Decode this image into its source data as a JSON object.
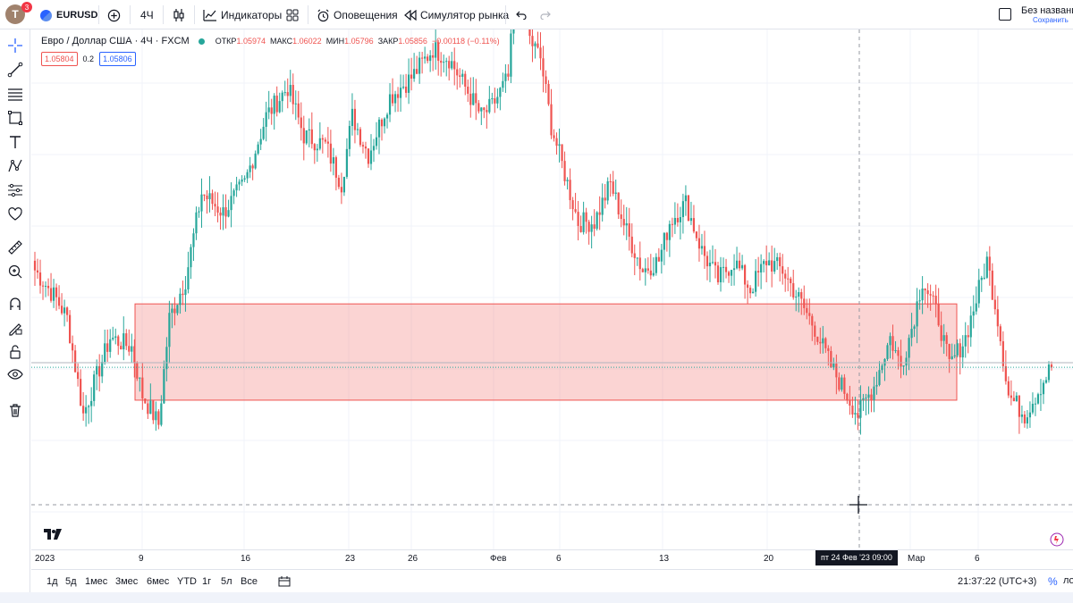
{
  "header": {
    "avatar_letter": "T",
    "avatar_badge": "3",
    "symbol": "EURUSD",
    "interval": "4Ч",
    "indicators_label": "Индикаторы",
    "alerts_label": "Оповещения",
    "replay_label": "Симулятор рынка",
    "layout_title": "Без названи",
    "save_label": "Сохранить",
    "icons": [
      "plus-circle-icon",
      "candles-icon",
      "indicators-icon",
      "layouts-icon",
      "alarm-icon",
      "replay-icon",
      "undo-icon",
      "redo-icon"
    ]
  },
  "left_toolbar": {
    "tools": [
      "crosshair-icon",
      "trendline-icon",
      "fib-icon",
      "rectangle-icon",
      "text-icon",
      "pattern-icon",
      "prediction-icon",
      "heart-icon",
      "ruler-icon",
      "zoom-icon",
      "magnet-icon",
      "lock-pencil-icon",
      "lock-icon",
      "eye-icon",
      "trash-icon"
    ]
  },
  "legend": {
    "title": "Евро / Доллар США · 4Ч · FXCM",
    "open_label": "ОТКР",
    "open": "1.05974",
    "high_label": "МАКС",
    "high": "1.06022",
    "low_label": "МИН",
    "low": "1.05796",
    "close_label": "ЗАКР",
    "close": "1.05856",
    "change": "−0.00118 (−0.11%)",
    "sell_price": "1.05804",
    "spread": "0.2",
    "buy_price": "1.05806",
    "status_color": "#26a69a"
  },
  "chart_data": {
    "type": "candlestick",
    "up_color": "#26a69a",
    "down_color": "#ef5350",
    "y_range": [
      1.05,
      1.104
    ],
    "x_ticks": [
      "2023",
      "9",
      "16",
      "23",
      "26",
      "Фев",
      "6",
      "13",
      "20",
      "Мар",
      "6"
    ],
    "crosshair_time": "пт 24 Фев '23   09:00",
    "zone": {
      "color": "#ef5350",
      "from_date": "9 Jan 2023",
      "to_date": "3 Mar 2023",
      "price_top": 1.0755,
      "price_bottom": 1.0655
    },
    "anchors": [
      [
        0,
        1.079
      ],
      [
        8,
        1.076
      ],
      [
        12,
        1.074
      ],
      [
        18,
        1.064
      ],
      [
        28,
        1.072
      ],
      [
        36,
        1.071
      ],
      [
        40,
        1.066
      ],
      [
        46,
        1.063
      ],
      [
        50,
        1.074
      ],
      [
        56,
        1.078
      ],
      [
        62,
        1.087
      ],
      [
        70,
        1.085
      ],
      [
        78,
        1.088
      ],
      [
        86,
        1.095
      ],
      [
        94,
        1.098
      ],
      [
        100,
        1.093
      ],
      [
        108,
        1.092
      ],
      [
        114,
        1.088
      ],
      [
        118,
        1.095
      ],
      [
        124,
        1.091
      ],
      [
        132,
        1.097
      ],
      [
        140,
        1.099
      ],
      [
        148,
        1.102
      ],
      [
        154,
        1.101
      ],
      [
        160,
        1.098
      ],
      [
        166,
        1.095
      ],
      [
        170,
        1.096
      ],
      [
        176,
        1.099
      ],
      [
        180,
        1.113
      ],
      [
        184,
        1.103
      ],
      [
        188,
        1.101
      ],
      [
        192,
        1.094
      ],
      [
        196,
        1.09
      ],
      [
        202,
        1.084
      ],
      [
        208,
        1.084
      ],
      [
        214,
        1.088
      ],
      [
        220,
        1.083
      ],
      [
        226,
        1.079
      ],
      [
        232,
        1.08
      ],
      [
        236,
        1.084
      ],
      [
        242,
        1.086
      ],
      [
        248,
        1.081
      ],
      [
        254,
        1.078
      ],
      [
        260,
        1.08
      ],
      [
        266,
        1.077
      ],
      [
        272,
        1.08
      ],
      [
        278,
        1.079
      ],
      [
        284,
        1.076
      ],
      [
        290,
        1.073
      ],
      [
        296,
        1.069
      ],
      [
        302,
        1.066
      ],
      [
        306,
        1.064
      ],
      [
        312,
        1.067
      ],
      [
        318,
        1.072
      ],
      [
        322,
        1.069
      ],
      [
        326,
        1.073
      ],
      [
        330,
        1.078
      ],
      [
        336,
        1.074
      ],
      [
        340,
        1.069
      ],
      [
        346,
        1.072
      ],
      [
        350,
        1.076
      ],
      [
        354,
        1.08
      ],
      [
        358,
        1.074
      ],
      [
        362,
        1.066
      ],
      [
        368,
        1.064
      ],
      [
        374,
        1.067
      ],
      [
        378,
        1.069
      ]
    ]
  },
  "time_axis": {
    "labels": [
      "2023",
      "9",
      "16",
      "23",
      "26",
      "Фев",
      "6",
      "13",
      "20",
      "Мар",
      "6"
    ]
  },
  "bottom_bar": {
    "ranges": [
      "1д",
      "5д",
      "1мес",
      "3мес",
      "6мес",
      "YTD",
      "1г",
      "5л",
      "Все"
    ],
    "clock": "21:37:22 (UTC+3)",
    "percent_label": "%",
    "auto_label": "ло"
  }
}
